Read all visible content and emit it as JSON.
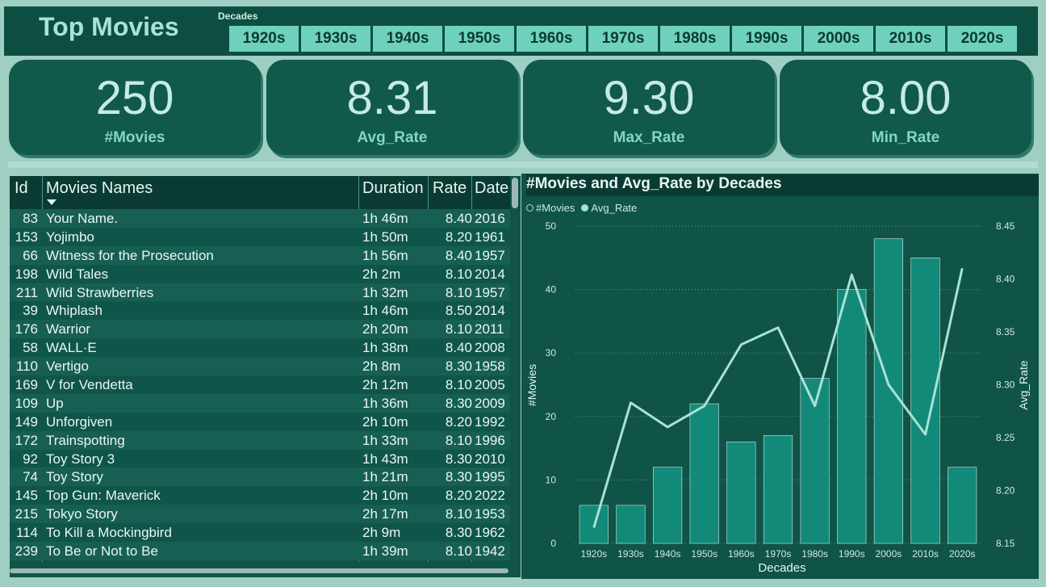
{
  "header": {
    "title": "Top Movies",
    "slicer_label": "Decades",
    "decades": [
      "1920s",
      "1930s",
      "1940s",
      "1950s",
      "1960s",
      "1970s",
      "1980s",
      "1990s",
      "2000s",
      "2010s",
      "2020s"
    ]
  },
  "kpis": [
    {
      "value": "250",
      "label": "#Movies"
    },
    {
      "value": "8.31",
      "label": "Avg_Rate"
    },
    {
      "value": "9.30",
      "label": "Max_Rate"
    },
    {
      "value": "8.00",
      "label": "Min_Rate"
    }
  ],
  "table": {
    "headers": {
      "id": "Id",
      "name": "Movies Names",
      "duration": "Duration",
      "rate": "Rate",
      "date": "Date"
    },
    "rows": [
      {
        "id": "83",
        "name": "Your Name.",
        "duration": "1h 46m",
        "rate": "8.40",
        "date": "2016"
      },
      {
        "id": "153",
        "name": "Yojimbo",
        "duration": "1h 50m",
        "rate": "8.20",
        "date": "1961"
      },
      {
        "id": "66",
        "name": "Witness for the Prosecution",
        "duration": "1h 56m",
        "rate": "8.40",
        "date": "1957"
      },
      {
        "id": "198",
        "name": "Wild Tales",
        "duration": "2h 2m",
        "rate": "8.10",
        "date": "2014"
      },
      {
        "id": "211",
        "name": "Wild Strawberries",
        "duration": "1h 32m",
        "rate": "8.10",
        "date": "1957"
      },
      {
        "id": "39",
        "name": "Whiplash",
        "duration": "1h 46m",
        "rate": "8.50",
        "date": "2014"
      },
      {
        "id": "176",
        "name": "Warrior",
        "duration": "2h 20m",
        "rate": "8.10",
        "date": "2011"
      },
      {
        "id": "58",
        "name": "WALL·E",
        "duration": "1h 38m",
        "rate": "8.40",
        "date": "2008"
      },
      {
        "id": "110",
        "name": "Vertigo",
        "duration": "2h 8m",
        "rate": "8.30",
        "date": "1958"
      },
      {
        "id": "169",
        "name": "V for Vendetta",
        "duration": "2h 12m",
        "rate": "8.10",
        "date": "2005"
      },
      {
        "id": "109",
        "name": "Up",
        "duration": "1h 36m",
        "rate": "8.30",
        "date": "2009"
      },
      {
        "id": "149",
        "name": "Unforgiven",
        "duration": "2h 10m",
        "rate": "8.20",
        "date": "1992"
      },
      {
        "id": "172",
        "name": "Trainspotting",
        "duration": "1h 33m",
        "rate": "8.10",
        "date": "1996"
      },
      {
        "id": "92",
        "name": "Toy Story 3",
        "duration": "1h 43m",
        "rate": "8.30",
        "date": "2010"
      },
      {
        "id": "74",
        "name": "Toy Story",
        "duration": "1h 21m",
        "rate": "8.30",
        "date": "1995"
      },
      {
        "id": "145",
        "name": "Top Gun: Maverick",
        "duration": "2h 10m",
        "rate": "8.20",
        "date": "2022"
      },
      {
        "id": "215",
        "name": "Tokyo Story",
        "duration": "2h 17m",
        "rate": "8.10",
        "date": "1953"
      },
      {
        "id": "114",
        "name": "To Kill a Mockingbird",
        "duration": "2h 9m",
        "rate": "8.30",
        "date": "1962"
      },
      {
        "id": "239",
        "name": "To Be or Not to Be",
        "duration": "1h 39m",
        "rate": "8.10",
        "date": "1942"
      }
    ]
  },
  "colors": {
    "bar": "#13897a",
    "line": "#a7e3d5",
    "accent": "#6fd1bc"
  },
  "chart_data": {
    "type": "bar",
    "title": "#Movies and Avg_Rate by Decades",
    "xlabel": "Decades",
    "ylabel": "#Movies",
    "y2label": "Avg_Rate",
    "categories": [
      "1920s",
      "1930s",
      "1940s",
      "1950s",
      "1960s",
      "1970s",
      "1980s",
      "1990s",
      "2000s",
      "2010s",
      "2020s"
    ],
    "ylim": [
      0,
      50
    ],
    "y2lim": [
      8.15,
      8.45
    ],
    "yticks": [
      "0",
      "10",
      "20",
      "30",
      "40",
      "50"
    ],
    "y2ticks": [
      "8.15",
      "8.20",
      "8.25",
      "8.30",
      "8.35",
      "8.40",
      "8.45"
    ],
    "grid": true,
    "legend_position": "top-left",
    "series": [
      {
        "name": "#Movies",
        "kind": "bar",
        "values": [
          6,
          6,
          12,
          22,
          16,
          17,
          26,
          40,
          48,
          45,
          12
        ]
      },
      {
        "name": "Avg_Rate",
        "kind": "line",
        "values": [
          8.165,
          8.283,
          8.26,
          8.28,
          8.338,
          8.354,
          8.28,
          8.404,
          8.3,
          8.253,
          8.41
        ]
      }
    ]
  }
}
